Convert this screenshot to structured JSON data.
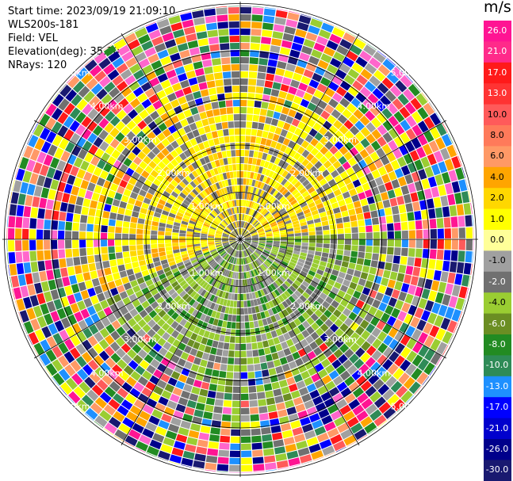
{
  "header": {
    "start_time": "Start time: 2023/09/19 21:09:10",
    "instrument": "WLS200s-181",
    "field": "Field: VEL",
    "elevation": "Elevation(deg): 35.30",
    "nrays": "NRays: 120"
  },
  "colorbar": {
    "unit": "m/s",
    "ticks": [
      "26.0",
      "21.0",
      "17.0",
      "13.0",
      "10.0",
      "8.0",
      "6.0",
      "4.0",
      "2.0",
      "1.0",
      "0.0",
      "-1.0",
      "-2.0",
      "-4.0",
      "-6.0",
      "-8.0",
      "-10.0",
      "-13.0",
      "-17.0",
      "-21.0",
      "-26.0",
      "-30.0"
    ],
    "colors": [
      "#ff1493",
      "#ff2a8a",
      "#ff1a1a",
      "#ff3333",
      "#ff5a5a",
      "#ff7a5a",
      "#ff9966",
      "#ffa500",
      "#ffd700",
      "#ffff00",
      "#ffff99",
      "#a0a0a0",
      "#707070",
      "#9acd32",
      "#6b8e23",
      "#228b22",
      "#2e8b57",
      "#1e90ff",
      "#0000ff",
      "#0000cd",
      "#00008b",
      "#191970"
    ]
  },
  "chart_data": {
    "type": "heatmap",
    "projection": "polar (PPI)",
    "field": "VEL",
    "nrays": 120,
    "range_ring_labels": [
      "1.00km",
      "2.00km",
      "3.00km",
      "4.00km",
      "5.00km"
    ],
    "value_range": [
      -30.0,
      26.0
    ],
    "pattern": "near-range (< ~3 km): positive velocities (yellow, 2-4 m/s) in northern half, negative velocities (green, -2 to -6 m/s) in southern half, gray near zero; beyond ~3.5 km: noisy multi-colored returns"
  }
}
